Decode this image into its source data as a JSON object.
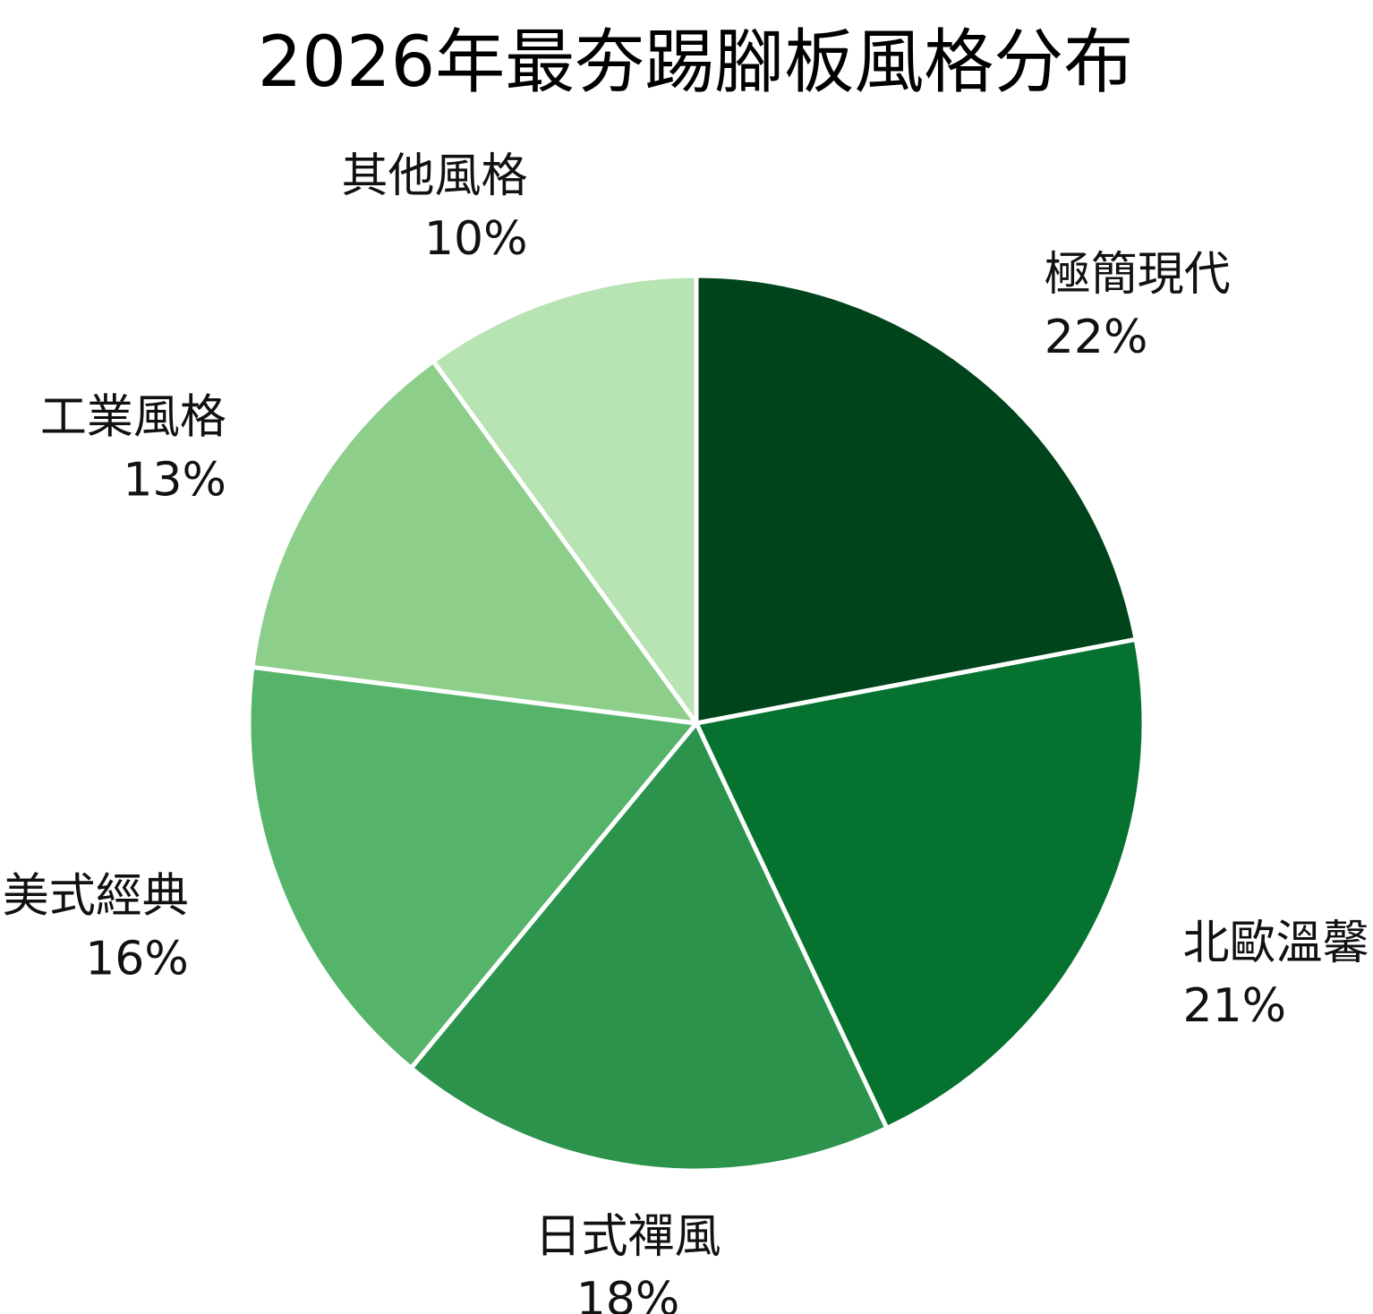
{
  "chart_data": {
    "type": "pie",
    "title": "2026年最夯踢腳板風格分布",
    "start_angle_deg": 90,
    "direction": "clockwise",
    "slices": [
      {
        "label": "極簡現代",
        "value": 22,
        "display": "22%",
        "color": "#00441b"
      },
      {
        "label": "北歐溫馨",
        "value": 21,
        "display": "21%",
        "color": "#06722f"
      },
      {
        "label": "日式禪風",
        "value": 18,
        "display": "18%",
        "color": "#2c934d"
      },
      {
        "label": "美式經典",
        "value": 16,
        "display": "16%",
        "color": "#55b469"
      },
      {
        "label": "工業風格",
        "value": 13,
        "display": "13%",
        "color": "#8dcf8a"
      },
      {
        "label": "其他風格",
        "value": 10,
        "display": "10%",
        "color": "#b8e3b2"
      }
    ],
    "slice_border_color": "#ffffff"
  }
}
